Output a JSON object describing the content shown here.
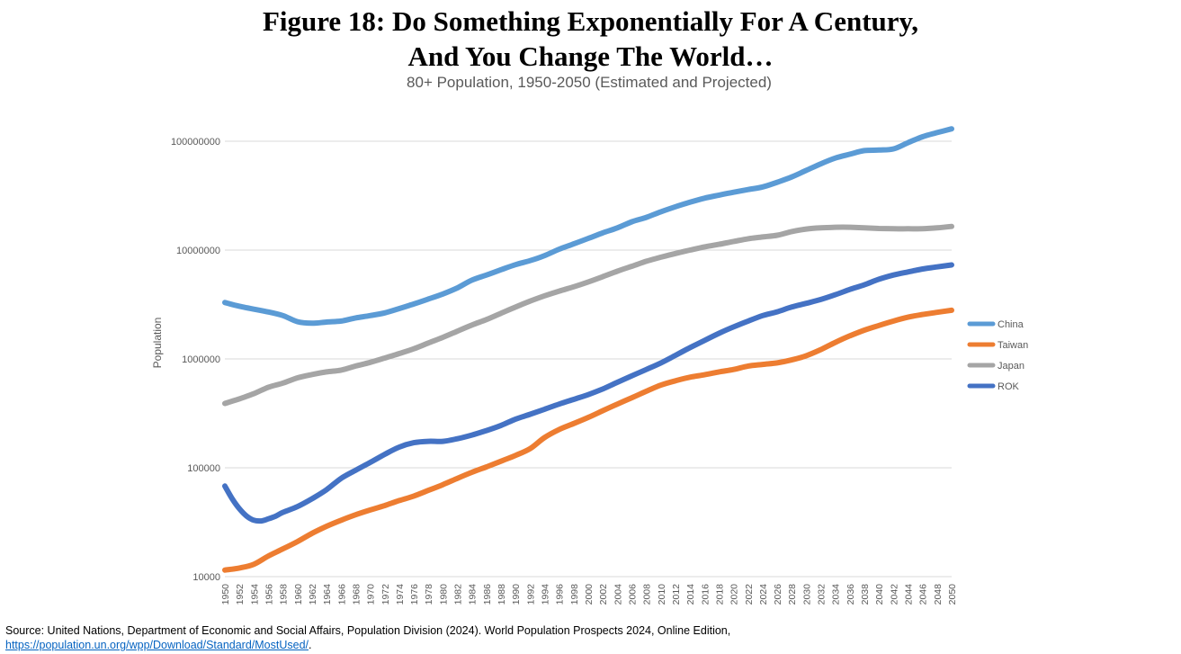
{
  "figure": {
    "title_line1": "Figure 18: Do Something Exponentially For A Century,",
    "title_line2": "And You Change The World…"
  },
  "source": {
    "text": "Source: United Nations, Department of Economic and Social Affairs, Population Division (2024). World Population Prospects 2024, Online Edition,",
    "link": "https://population.un.org/wpp/Download/Standard/MostUsed/",
    "suffix": "."
  },
  "chart_data": {
    "type": "line",
    "title": "80+ Population, 1950-2050 (Estimated and Projected)",
    "xlabel": "",
    "ylabel": "Population",
    "yscale": "log",
    "ylim": [
      10000,
      100000000
    ],
    "yticks": [
      "10000",
      "100000",
      "1000000",
      "10000000",
      "100000000"
    ],
    "xlim": [
      1950,
      2050
    ],
    "xticks": [
      "1950",
      "1952",
      "1954",
      "1956",
      "1958",
      "1960",
      "1962",
      "1964",
      "1966",
      "1968",
      "1970",
      "1972",
      "1974",
      "1976",
      "1978",
      "1980",
      "1982",
      "1984",
      "1986",
      "1988",
      "1990",
      "1992",
      "1994",
      "1996",
      "1998",
      "2000",
      "2002",
      "2004",
      "2006",
      "2008",
      "2010",
      "2012",
      "2014",
      "2016",
      "2018",
      "2020",
      "2022",
      "2024",
      "2026",
      "2028",
      "2030",
      "2032",
      "2034",
      "2036",
      "2038",
      "2040",
      "2042",
      "2044",
      "2046",
      "2048",
      "2050"
    ],
    "grid": true,
    "legend_position": "right",
    "series": [
      {
        "name": "China",
        "color": "#5b9bd5",
        "x": [
          1950,
          1952,
          1956,
          1958,
          1960,
          1962,
          1964,
          1966,
          1968,
          1970,
          1972,
          1974,
          1976,
          1978,
          1980,
          1982,
          1984,
          1986,
          1988,
          1990,
          1992,
          1994,
          1996,
          1998,
          2000,
          2002,
          2004,
          2006,
          2008,
          2010,
          2012,
          2014,
          2016,
          2018,
          2020,
          2022,
          2024,
          2026,
          2028,
          2030,
          2032,
          2034,
          2036,
          2038,
          2040,
          2042,
          2044,
          2046,
          2048,
          2050
        ],
        "y": [
          3300000,
          3050000,
          2700000,
          2500000,
          2200000,
          2130000,
          2180000,
          2230000,
          2380000,
          2500000,
          2650000,
          2900000,
          3200000,
          3550000,
          3950000,
          4500000,
          5300000,
          5900000,
          6600000,
          7350000,
          8000000,
          8900000,
          10200000,
          11400000,
          12800000,
          14400000,
          16000000,
          18200000,
          20000000,
          22500000,
          25000000,
          27500000,
          30000000,
          32000000,
          34000000,
          36000000,
          38000000,
          42000000,
          47000000,
          54000000,
          62000000,
          70000000,
          76000000,
          82000000,
          83000000,
          85000000,
          97000000,
          110000000,
          120000000,
          130000000
        ]
      },
      {
        "name": "Taiwan",
        "color": "#ed7d31",
        "x": [
          1950,
          1952,
          1954,
          1956,
          1958,
          1960,
          1962,
          1964,
          1966,
          1968,
          1970,
          1972,
          1974,
          1976,
          1978,
          1980,
          1982,
          1984,
          1986,
          1988,
          1990,
          1992,
          1994,
          1996,
          1998,
          2000,
          2002,
          2004,
          2006,
          2008,
          2010,
          2012,
          2014,
          2016,
          2018,
          2020,
          2022,
          2024,
          2026,
          2028,
          2030,
          2032,
          2034,
          2036,
          2038,
          2040,
          2042,
          2044,
          2046,
          2048,
          2050
        ],
        "y": [
          11500,
          12000,
          13000,
          15500,
          18000,
          21000,
          25000,
          29000,
          33000,
          37000,
          41000,
          45000,
          50000,
          55000,
          62000,
          70000,
          80000,
          91000,
          102000,
          115000,
          130000,
          150000,
          190000,
          225000,
          255000,
          290000,
          335000,
          385000,
          440000,
          505000,
          575000,
          630000,
          680000,
          715000,
          760000,
          800000,
          860000,
          890000,
          920000,
          980000,
          1070000,
          1220000,
          1420000,
          1630000,
          1840000,
          2030000,
          2230000,
          2420000,
          2560000,
          2680000,
          2800000
        ]
      },
      {
        "name": "Japan",
        "color": "#a5a5a5",
        "x": [
          1950,
          1952,
          1954,
          1956,
          1958,
          1960,
          1962,
          1964,
          1966,
          1968,
          1970,
          1972,
          1974,
          1976,
          1978,
          1980,
          1982,
          1984,
          1986,
          1988,
          1990,
          1992,
          1994,
          1996,
          1998,
          2000,
          2002,
          2004,
          2006,
          2008,
          2010,
          2012,
          2014,
          2016,
          2018,
          2020,
          2022,
          2024,
          2026,
          2028,
          2030,
          2032,
          2034,
          2036,
          2038,
          2040,
          2042,
          2044,
          2046,
          2048,
          2050
        ],
        "y": [
          390000,
          430000,
          480000,
          550000,
          600000,
          670000,
          720000,
          760000,
          790000,
          860000,
          930000,
          1020000,
          1120000,
          1240000,
          1400000,
          1580000,
          1800000,
          2050000,
          2300000,
          2630000,
          3000000,
          3400000,
          3800000,
          4200000,
          4600000,
          5100000,
          5700000,
          6400000,
          7100000,
          7900000,
          8600000,
          9300000,
          10000000,
          10700000,
          11300000,
          12000000,
          12700000,
          13200000,
          13700000,
          14800000,
          15600000,
          16000000,
          16200000,
          16200000,
          16000000,
          15800000,
          15700000,
          15700000,
          15700000,
          16000000,
          16500000
        ]
      },
      {
        "name": "ROK",
        "color": "#4472c4",
        "x": [
          1950,
          1951,
          1952,
          1953,
          1954,
          1955,
          1956,
          1957,
          1958,
          1960,
          1962,
          1964,
          1966,
          1968,
          1970,
          1972,
          1974,
          1976,
          1978,
          1980,
          1982,
          1984,
          1986,
          1988,
          1990,
          1992,
          1994,
          1996,
          1998,
          2000,
          2002,
          2004,
          2006,
          2008,
          2010,
          2012,
          2014,
          2016,
          2018,
          2020,
          2022,
          2024,
          2026,
          2028,
          2030,
          2032,
          2034,
          2036,
          2038,
          2040,
          2042,
          2044,
          2046,
          2048,
          2050
        ],
        "y": [
          68000,
          52000,
          42000,
          36000,
          33000,
          32500,
          34000,
          36000,
          39000,
          44000,
          52000,
          63000,
          80000,
          95000,
          112000,
          133000,
          155000,
          170000,
          175000,
          175000,
          185000,
          200000,
          220000,
          245000,
          280000,
          310000,
          345000,
          385000,
          425000,
          470000,
          530000,
          610000,
          700000,
          800000,
          920000,
          1080000,
          1270000,
          1480000,
          1720000,
          1970000,
          2230000,
          2500000,
          2710000,
          3000000,
          3240000,
          3520000,
          3890000,
          4350000,
          4800000,
          5400000,
          5900000,
          6300000,
          6700000,
          7000000,
          7300000
        ]
      }
    ]
  }
}
